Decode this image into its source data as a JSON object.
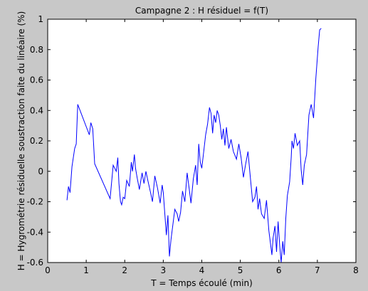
{
  "chart_data": {
    "type": "line",
    "title": "Campagne 2 : H résiduel = f(T)",
    "xlabel": "T = Temps écoulé (min)",
    "ylabel": "H = Hygrométrie résiduelle soustraction faite du linéaire (%)",
    "xlim": [
      0,
      8
    ],
    "ylim": [
      -0.6,
      1
    ],
    "xticks": [
      0,
      1,
      2,
      3,
      4,
      5,
      6,
      7,
      8
    ],
    "xtick_labels": [
      "0",
      "1",
      "2",
      "3",
      "4",
      "5",
      "6",
      "7",
      "8"
    ],
    "yticks": [
      -0.6,
      -0.4,
      -0.2,
      0,
      0.2,
      0.4,
      0.6,
      0.8,
      1
    ],
    "ytick_labels": [
      "-0.6",
      "-0.4",
      "-0.2",
      "0",
      "0.2",
      "0.4",
      "0.6",
      "0.8",
      "1"
    ],
    "grid": false,
    "line_color": "#0000ff",
    "background": "#c8c8c8",
    "axes_background": "#ffffff",
    "series": [
      {
        "x": [
          0.5,
          0.54,
          0.58,
          0.63,
          0.7,
          0.74,
          0.78,
          1.08,
          1.12,
          1.17,
          1.22,
          1.62,
          1.7,
          1.78,
          1.82,
          1.85,
          1.89,
          1.92,
          1.96,
          2.0,
          2.05,
          2.12,
          2.17,
          2.2,
          2.25,
          2.28,
          2.32,
          2.38,
          2.45,
          2.5,
          2.55,
          2.6,
          2.67,
          2.72,
          2.78,
          2.85,
          2.92,
          2.97,
          3.0,
          3.08,
          3.12,
          3.16,
          3.2,
          3.25,
          3.3,
          3.36,
          3.4,
          3.45,
          3.5,
          3.56,
          3.62,
          3.68,
          3.72,
          3.78,
          3.84,
          3.88,
          3.92,
          3.96,
          4.0,
          4.05,
          4.1,
          4.15,
          4.2,
          4.24,
          4.28,
          4.32,
          4.36,
          4.4,
          4.44,
          4.48,
          4.52,
          4.56,
          4.6,
          4.64,
          4.7,
          4.76,
          4.82,
          4.9,
          4.96,
          5.02,
          5.08,
          5.14,
          5.2,
          5.26,
          5.32,
          5.38,
          5.42,
          5.46,
          5.5,
          5.55,
          5.62,
          5.68,
          5.74,
          5.82,
          5.85,
          5.9,
          5.94,
          5.98,
          6.02,
          6.06,
          6.1,
          6.14,
          6.18,
          6.22,
          6.28,
          6.32,
          6.34,
          6.38,
          6.42,
          6.48,
          6.54,
          6.58,
          6.62,
          6.66,
          6.72,
          6.78,
          6.84,
          6.9,
          6.96,
          7.02,
          7.06,
          7.1
        ],
        "y": [
          -0.19,
          -0.1,
          -0.14,
          0.03,
          0.15,
          0.18,
          0.44,
          0.24,
          0.32,
          0.28,
          0.05,
          -0.18,
          0.04,
          0.0,
          0.09,
          -0.08,
          -0.2,
          -0.22,
          -0.17,
          -0.18,
          -0.06,
          -0.1,
          0.06,
          0.0,
          0.11,
          0.02,
          -0.04,
          -0.12,
          -0.01,
          -0.08,
          0.0,
          -0.06,
          -0.14,
          -0.2,
          -0.03,
          -0.11,
          -0.21,
          -0.09,
          -0.14,
          -0.42,
          -0.29,
          -0.56,
          -0.45,
          -0.35,
          -0.25,
          -0.28,
          -0.33,
          -0.27,
          -0.13,
          -0.2,
          -0.01,
          -0.13,
          -0.21,
          -0.05,
          0.04,
          -0.09,
          0.18,
          0.06,
          0.02,
          0.13,
          0.24,
          0.31,
          0.42,
          0.38,
          0.25,
          0.37,
          0.32,
          0.4,
          0.37,
          0.3,
          0.21,
          0.28,
          0.17,
          0.29,
          0.15,
          0.21,
          0.13,
          0.08,
          0.18,
          0.09,
          -0.04,
          0.05,
          0.13,
          -0.04,
          -0.2,
          -0.17,
          -0.1,
          -0.25,
          -0.18,
          -0.28,
          -0.31,
          -0.19,
          -0.39,
          -0.55,
          -0.44,
          -0.36,
          -0.53,
          -0.33,
          -0.48,
          -0.6,
          -0.46,
          -0.55,
          -0.31,
          -0.16,
          -0.07,
          0.09,
          0.2,
          0.15,
          0.25,
          0.17,
          0.2,
          0.01,
          -0.09,
          0.04,
          0.11,
          0.37,
          0.44,
          0.35,
          0.61,
          0.82,
          0.93,
          0.94
        ]
      }
    ]
  }
}
